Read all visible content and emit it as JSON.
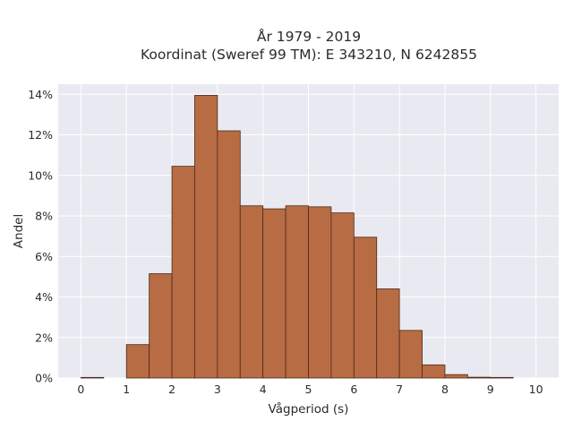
{
  "chart_data": {
    "type": "bar",
    "title": "År 1979 - 2019",
    "subtitle": "Koordinat (Sweref 99 TM): E 343210, N 6242855",
    "xlabel": "Vågperiod (s)",
    "ylabel": "Andel",
    "xlim": [
      -0.5,
      10.5
    ],
    "ylim": [
      0,
      14.5
    ],
    "x_ticks": [
      0,
      1,
      2,
      3,
      4,
      5,
      6,
      7,
      8,
      9,
      10
    ],
    "y_ticks": [
      0,
      2,
      4,
      6,
      8,
      10,
      12,
      14
    ],
    "y_tick_labels": [
      "0%",
      "2%",
      "4%",
      "6%",
      "8%",
      "10%",
      "12%",
      "14%"
    ],
    "grid": true,
    "bin_width": 0.5,
    "bins": [
      {
        "start": 0.0,
        "value": 0.03
      },
      {
        "start": 0.5,
        "value": 0.0
      },
      {
        "start": 1.0,
        "value": 1.65
      },
      {
        "start": 1.5,
        "value": 5.15
      },
      {
        "start": 2.0,
        "value": 10.45
      },
      {
        "start": 2.5,
        "value": 13.95
      },
      {
        "start": 3.0,
        "value": 12.2
      },
      {
        "start": 3.5,
        "value": 8.5
      },
      {
        "start": 4.0,
        "value": 8.35
      },
      {
        "start": 4.5,
        "value": 8.5
      },
      {
        "start": 5.0,
        "value": 8.45
      },
      {
        "start": 5.5,
        "value": 8.15
      },
      {
        "start": 6.0,
        "value": 6.95
      },
      {
        "start": 6.5,
        "value": 4.4
      },
      {
        "start": 7.0,
        "value": 2.35
      },
      {
        "start": 7.5,
        "value": 0.65
      },
      {
        "start": 8.0,
        "value": 0.17
      },
      {
        "start": 8.5,
        "value": 0.04
      },
      {
        "start": 9.0,
        "value": 0.03
      }
    ],
    "colors": {
      "bar_fill": "#b86c43",
      "bar_edge": "#4a2a1a",
      "plot_bg": "#e9e9f1",
      "grid": "#ffffff"
    }
  }
}
